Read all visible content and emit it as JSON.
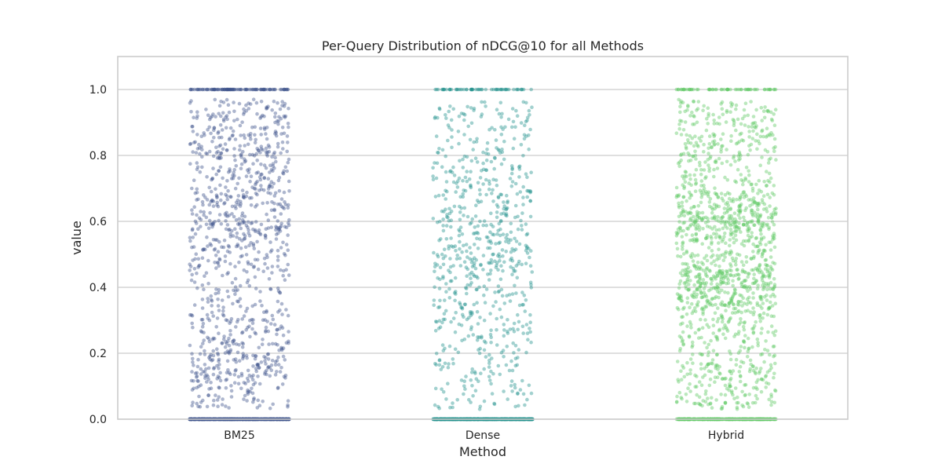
{
  "chart_data": {
    "type": "scatter",
    "subtype": "strip",
    "title": "Per-Query Distribution of nDCG@10 for all Methods",
    "xlabel": "Method",
    "ylabel": "value",
    "categories": [
      "BM25",
      "Dense",
      "Hybrid"
    ],
    "ylim": [
      0.0,
      1.1
    ],
    "yticks": [
      "0.0",
      "0.2",
      "0.4",
      "0.6",
      "0.8",
      "1.0"
    ],
    "grid": "horizontal",
    "series": [
      {
        "category": "BM25",
        "color": "#3b518b",
        "points_in_0_1": 1000,
        "count_at_0": 600,
        "count_at_1": 100,
        "density_peaks": [
          0.15,
          0.6,
          0.82
        ]
      },
      {
        "category": "Dense",
        "color": "#21918c",
        "points_in_0_1": 700,
        "count_at_0": 700,
        "count_at_1": 60,
        "density_peaks": [
          0.3,
          0.45,
          0.55,
          0.7
        ]
      },
      {
        "category": "Hybrid",
        "color": "#5ec962",
        "points_in_0_1": 1400,
        "count_at_0": 400,
        "count_at_1": 60,
        "density_peaks": [
          0.4,
          0.6
        ]
      }
    ]
  }
}
